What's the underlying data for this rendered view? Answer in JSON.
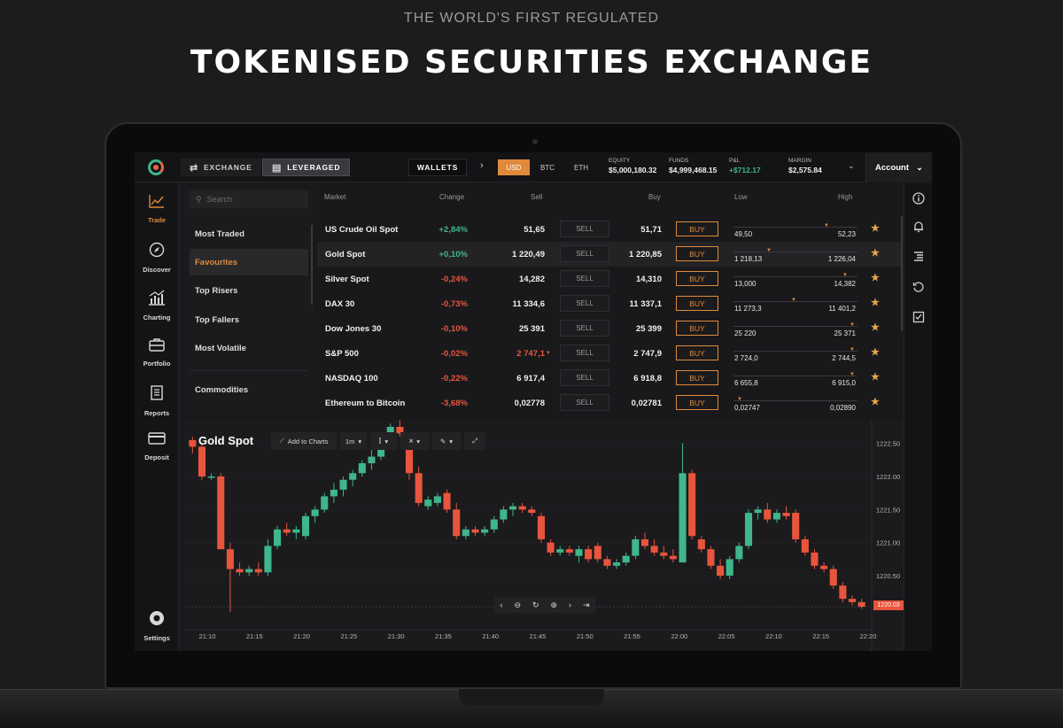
{
  "hero": {
    "subtitle": "THE WORLD'S FIRST REGULATED",
    "title": "TOKENISED SECURITIES EXCHANGE"
  },
  "topbar": {
    "tabs": [
      {
        "label": "EXCHANGE",
        "icon": "swap-icon"
      },
      {
        "label": "LEVERAGED",
        "icon": "chart-window-icon",
        "active": true
      }
    ],
    "wallets_label": "WALLETS",
    "currencies": [
      "USD",
      "BTC",
      "ETH"
    ],
    "selected_currency": "USD",
    "stats": [
      {
        "label": "EQUITY",
        "value": "$5,000,180.32"
      },
      {
        "label": "FUNDS",
        "value": "$4,999,468.15"
      },
      {
        "label": "P&L",
        "value": "+$712.17"
      },
      {
        "label": "MARGIN",
        "value": "$2,575.84"
      }
    ],
    "account_label": "Account"
  },
  "leftnav": [
    {
      "label": "Trade",
      "icon": "trend-icon",
      "active": true
    },
    {
      "label": "Discover",
      "icon": "compass-icon"
    },
    {
      "label": "Charting",
      "icon": "bar-chart-icon"
    },
    {
      "label": "Portfolio",
      "icon": "briefcase-icon"
    },
    {
      "label": "Reports",
      "icon": "document-icon"
    },
    {
      "label": "Deposit",
      "icon": "card-icon"
    },
    {
      "label": "Settings",
      "icon": "gear-icon"
    }
  ],
  "categories": {
    "search_placeholder": "Search",
    "items": [
      "Most Traded",
      "Favourites",
      "Top Risers",
      "Top Fallers",
      "Most Volatile",
      "Commodities"
    ],
    "active": "Favourites"
  },
  "table": {
    "headers": {
      "market": "Market",
      "change": "Change",
      "sell": "Sell",
      "buy": "Buy",
      "low": "Low",
      "high": "High"
    },
    "sell_label": "SELL",
    "buy_label": "BUY",
    "rows": [
      {
        "market": "US Crude Oil Spot",
        "change": "+2,84%",
        "dir": "up",
        "sell": "51,65",
        "buy": "51,71",
        "low": "49,50",
        "high": "52,23",
        "pos": 0.77
      },
      {
        "market": "Gold Spot",
        "change": "+0,10%",
        "dir": "up",
        "sell": "1 220,49",
        "buy": "1 220,85",
        "low": "1 218,13",
        "high": "1 226,04",
        "pos": 0.28
      },
      {
        "market": "Silver Spot",
        "change": "-0,24%",
        "dir": "dn",
        "sell": "14,282",
        "buy": "14,310",
        "low": "13,000",
        "high": "14,382",
        "pos": 0.93
      },
      {
        "market": "DAX 30",
        "change": "-0,73%",
        "dir": "dn",
        "sell": "11 334,6",
        "buy": "11 337,1",
        "low": "11 273,3",
        "high": "11 401,2",
        "pos": 0.49
      },
      {
        "market": "Dow Jones 30",
        "change": "-0,10%",
        "dir": "dn",
        "sell": "25 391",
        "buy": "25 399",
        "low": "25 220",
        "high": "25 371",
        "pos": 0.99
      },
      {
        "market": "S&P 500",
        "change": "-0,02%",
        "dir": "dn",
        "sell": "2 747,1",
        "sell_flag": "dn",
        "buy": "2 747,9",
        "low": "2 724,0",
        "high": "2 744,5",
        "pos": 0.99
      },
      {
        "market": "NASDAQ 100",
        "change": "-0,22%",
        "dir": "dn",
        "sell": "6 917,4",
        "buy": "6 918,8",
        "low": "6 655,8",
        "high": "6 915,0",
        "pos": 0.99
      },
      {
        "market": "Ethereum to Bitcoin",
        "change": "-3,68%",
        "dir": "dn",
        "sell": "0,02778",
        "buy": "0,02781",
        "low": "0,02747",
        "high": "0,02890",
        "pos": 0.03
      }
    ]
  },
  "rightnav": [
    "info-icon",
    "bell-icon",
    "list-icon",
    "history-icon",
    "checklist-icon"
  ],
  "chart": {
    "title": "Gold Spot",
    "add_to_charts": "Add to Charts",
    "interval": "1m",
    "last_price": "1220.03",
    "y_ticks": [
      "1222.50",
      "1222.00",
      "1221.50",
      "1221.00",
      "1220.50"
    ],
    "x_ticks": [
      "21:10",
      "21:15",
      "21:20",
      "21:25",
      "21:30",
      "21:35",
      "21:40",
      "21:45",
      "21:50",
      "21:55",
      "22:00",
      "22:05",
      "22:10",
      "22:15",
      "22:20"
    ]
  },
  "chart_data": {
    "type": "candlestick",
    "title": "Gold Spot",
    "ylim": [
      1219.75,
      1222.75
    ],
    "up_color": "#3fb68b",
    "down_color": "#e8553d",
    "candles": [
      [
        1222.55,
        1222.6,
        1222.35,
        1222.45
      ],
      [
        1222.45,
        1222.5,
        1221.95,
        1222.0
      ],
      [
        1222.0,
        1222.05,
        1221.95,
        1222.0
      ],
      [
        1222.0,
        1222.05,
        1220.9,
        1220.9
      ],
      [
        1220.9,
        1221.0,
        1219.95,
        1220.6
      ],
      [
        1220.6,
        1220.7,
        1220.5,
        1220.55
      ],
      [
        1220.55,
        1220.65,
        1220.5,
        1220.6
      ],
      [
        1220.6,
        1220.7,
        1220.5,
        1220.55
      ],
      [
        1220.55,
        1221.05,
        1220.5,
        1220.95
      ],
      [
        1220.95,
        1221.25,
        1220.9,
        1221.2
      ],
      [
        1221.2,
        1221.3,
        1221.1,
        1221.15
      ],
      [
        1221.15,
        1221.25,
        1221.05,
        1221.2
      ],
      [
        1221.1,
        1221.45,
        1221.05,
        1221.4
      ],
      [
        1221.4,
        1221.55,
        1221.3,
        1221.5
      ],
      [
        1221.5,
        1221.75,
        1221.45,
        1221.7
      ],
      [
        1221.7,
        1221.9,
        1221.6,
        1221.8
      ],
      [
        1221.8,
        1222.0,
        1221.7,
        1221.95
      ],
      [
        1221.95,
        1222.1,
        1221.85,
        1222.05
      ],
      [
        1222.05,
        1222.25,
        1222.0,
        1222.2
      ],
      [
        1222.2,
        1222.4,
        1222.1,
        1222.3
      ],
      [
        1222.3,
        1222.6,
        1222.25,
        1222.55
      ],
      [
        1222.6,
        1222.8,
        1222.55,
        1222.75
      ],
      [
        1222.75,
        1222.85,
        1222.6,
        1222.65
      ],
      [
        1222.45,
        1222.5,
        1221.95,
        1222.05
      ],
      [
        1222.05,
        1222.15,
        1221.55,
        1221.6
      ],
      [
        1221.55,
        1221.7,
        1221.5,
        1221.65
      ],
      [
        1221.6,
        1221.75,
        1221.55,
        1221.7
      ],
      [
        1221.75,
        1221.8,
        1221.45,
        1221.5
      ],
      [
        1221.5,
        1221.6,
        1221.05,
        1221.1
      ],
      [
        1221.1,
        1221.25,
        1221.05,
        1221.2
      ],
      [
        1221.2,
        1221.25,
        1221.1,
        1221.15
      ],
      [
        1221.15,
        1221.25,
        1221.1,
        1221.2
      ],
      [
        1221.2,
        1221.4,
        1221.15,
        1221.35
      ],
      [
        1221.35,
        1221.55,
        1221.3,
        1221.5
      ],
      [
        1221.5,
        1221.6,
        1221.4,
        1221.55
      ],
      [
        1221.55,
        1221.6,
        1221.45,
        1221.5
      ],
      [
        1221.5,
        1221.55,
        1221.4,
        1221.45
      ],
      [
        1221.4,
        1221.45,
        1221.0,
        1221.05
      ],
      [
        1221.0,
        1221.05,
        1220.8,
        1220.85
      ],
      [
        1220.85,
        1220.95,
        1220.8,
        1220.9
      ],
      [
        1220.9,
        1220.95,
        1220.8,
        1220.85
      ],
      [
        1220.8,
        1220.95,
        1220.7,
        1220.9
      ],
      [
        1220.9,
        1220.95,
        1220.7,
        1220.75
      ],
      [
        1220.95,
        1221.0,
        1220.7,
        1220.75
      ],
      [
        1220.75,
        1220.8,
        1220.6,
        1220.65
      ],
      [
        1220.65,
        1220.75,
        1220.6,
        1220.7
      ],
      [
        1220.7,
        1220.85,
        1220.65,
        1220.8
      ],
      [
        1220.8,
        1221.1,
        1220.75,
        1221.05
      ],
      [
        1221.05,
        1221.15,
        1220.9,
        1220.95
      ],
      [
        1220.95,
        1221.05,
        1220.8,
        1220.85
      ],
      [
        1220.85,
        1220.95,
        1220.75,
        1220.8
      ],
      [
        1220.8,
        1220.9,
        1220.7,
        1220.75
      ],
      [
        1220.7,
        1222.5,
        1220.7,
        1222.05
      ],
      [
        1222.05,
        1222.1,
        1221.05,
        1221.1
      ],
      [
        1221.05,
        1221.1,
        1220.85,
        1220.9
      ],
      [
        1220.9,
        1220.95,
        1220.6,
        1220.65
      ],
      [
        1220.65,
        1220.75,
        1220.45,
        1220.5
      ],
      [
        1220.5,
        1220.8,
        1220.45,
        1220.75
      ],
      [
        1220.75,
        1221.0,
        1220.7,
        1220.95
      ],
      [
        1220.95,
        1221.5,
        1220.9,
        1221.45
      ],
      [
        1221.45,
        1221.55,
        1221.35,
        1221.5
      ],
      [
        1221.5,
        1221.6,
        1221.3,
        1221.35
      ],
      [
        1221.35,
        1221.5,
        1221.3,
        1221.45
      ],
      [
        1221.45,
        1221.55,
        1221.35,
        1221.4
      ],
      [
        1221.45,
        1221.5,
        1221.0,
        1221.05
      ],
      [
        1221.05,
        1221.1,
        1220.8,
        1220.85
      ],
      [
        1220.85,
        1220.9,
        1220.6,
        1220.65
      ],
      [
        1220.65,
        1220.7,
        1220.55,
        1220.6
      ],
      [
        1220.6,
        1220.65,
        1220.3,
        1220.35
      ],
      [
        1220.35,
        1220.4,
        1220.1,
        1220.15
      ],
      [
        1220.15,
        1220.2,
        1220.05,
        1220.1
      ],
      [
        1220.1,
        1220.15,
        1220.0,
        1220.03
      ]
    ]
  }
}
